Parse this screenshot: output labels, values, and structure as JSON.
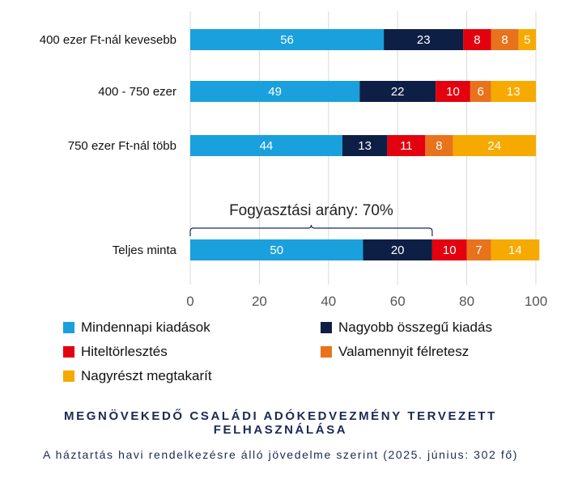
{
  "chart_data": {
    "type": "bar",
    "orientation": "horizontal",
    "stacked": true,
    "categories": [
      "400 ezer Ft-nál kevesebb",
      "400 - 750 ezer",
      "750 ezer Ft-nál több",
      "Teljes minta"
    ],
    "series": [
      {
        "name": "Mindennapi kiadások",
        "color": "#1aa0dc",
        "label_color": "#ffffff",
        "values": [
          56,
          49,
          44,
          50
        ]
      },
      {
        "name": "Nagyobb összegű kiadás",
        "color": "#0d1f45",
        "label_color": "#ffffff",
        "values": [
          23,
          22,
          13,
          20
        ]
      },
      {
        "name": "Hiteltörlesztés",
        "color": "#e3000f",
        "label_color": "#ffffff",
        "values": [
          8,
          10,
          11,
          10
        ]
      },
      {
        "name": "Valamennyit félretesz",
        "color": "#e8731c",
        "label_color": "#ffffff",
        "values": [
          8,
          6,
          8,
          7
        ]
      },
      {
        "name": "Nagyrészt megtakarít",
        "color": "#f6aa00",
        "label_color": "#ffffff",
        "values": [
          5,
          13,
          24,
          14
        ]
      }
    ],
    "xlim": [
      0,
      100
    ],
    "xticks": [
      0,
      20,
      40,
      60,
      80,
      100
    ],
    "grid": true,
    "legend_position": "bottom",
    "annotation": {
      "text": "Fogyasztási arány: 70%",
      "category": "Teljes minta",
      "from": 0,
      "to": 70
    }
  },
  "title": "MEGNÖVEKEDŐ CSALÁDI ADÓKEDVEZMÉNY TERVEZETT FELHASZNÁLÁSA",
  "subtitle": "A háztartás havi rendelkezésre álló jövedelme szerint (2025. június: 302 fő)"
}
